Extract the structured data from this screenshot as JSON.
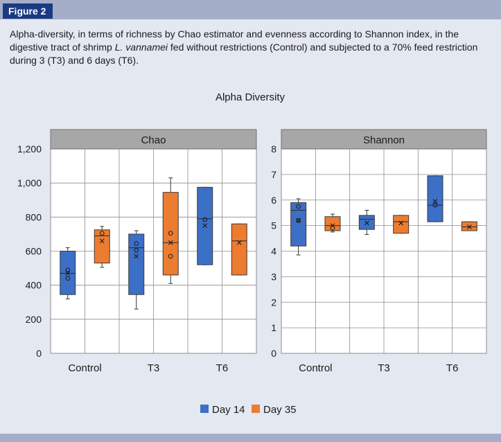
{
  "figure": {
    "label": "Figure 2",
    "caption_parts": [
      "Alpha-diversity, in terms of richness by Chao estimator and evenness according to Shannon index, in the digestive tract of shrimp ",
      "L. vannamei",
      " fed without restrictions (Control) and subjected to a 70% feed restriction during 3 (T3) and 6 days (T6)."
    ]
  },
  "colors": {
    "day14": "#3c6fc6",
    "day35": "#ec7c30",
    "panel_header": "#a7a7a7",
    "plot_bg": "#ffffff",
    "grid": "#8c8c8c"
  },
  "chart_data": {
    "type": "box",
    "title": "Alpha Diversity",
    "categories": [
      "Control",
      "T3",
      "T6"
    ],
    "legend": [
      "Day 14",
      "Day 35"
    ],
    "legend_position": "bottom",
    "panels": [
      {
        "name": "Chao",
        "ylim": [
          0,
          1200
        ],
        "yticks": [
          0,
          200,
          400,
          600,
          800,
          1000,
          1200
        ],
        "ytick_labels": [
          "0",
          "200",
          "400",
          "600",
          "800",
          "1,000",
          "1,200"
        ],
        "series": [
          {
            "name": "Day 14",
            "boxes": [
              {
                "whisker_low": 320,
                "q1": 345,
                "median": 470,
                "q3": 600,
                "whisker_high": 620,
                "mean": 470,
                "points": [
                  440,
                  490
                ]
              },
              {
                "whisker_low": 260,
                "q1": 345,
                "median": 620,
                "q3": 700,
                "whisker_high": 720,
                "mean": 570,
                "points": [
                  605,
                  645
                ]
              },
              {
                "whisker_low": 520,
                "q1": 520,
                "median": 790,
                "q3": 975,
                "whisker_high": 975,
                "mean": 750,
                "points": [
                  785
                ]
              }
            ]
          },
          {
            "name": "Day 35",
            "boxes": [
              {
                "whisker_low": 505,
                "q1": 530,
                "median": 690,
                "q3": 725,
                "whisker_high": 745,
                "mean": 660,
                "points": [
                  705
                ]
              },
              {
                "whisker_low": 410,
                "q1": 460,
                "median": 650,
                "q3": 945,
                "whisker_high": 1030,
                "mean": 650,
                "points": [
                  570,
                  705
                ]
              },
              {
                "whisker_low": 460,
                "q1": 460,
                "median": 660,
                "q3": 760,
                "whisker_high": 760,
                "mean": 650,
                "points": []
              }
            ]
          }
        ]
      },
      {
        "name": "Shannon",
        "ylim": [
          0,
          8
        ],
        "yticks": [
          0,
          1,
          2,
          3,
          4,
          5,
          6,
          7,
          8
        ],
        "ytick_labels": [
          "0",
          "1",
          "2",
          "3",
          "4",
          "5",
          "6",
          "7",
          "8"
        ],
        "series": [
          {
            "name": "Day 14",
            "boxes": [
              {
                "whisker_low": 3.85,
                "q1": 4.2,
                "median": 5.6,
                "q3": 5.9,
                "whisker_high": 6.05,
                "mean": 5.2,
                "points": [
                  5.2,
                  5.75
                ]
              },
              {
                "whisker_low": 4.65,
                "q1": 4.85,
                "median": 5.25,
                "q3": 5.4,
                "whisker_high": 5.6,
                "mean": 5.1,
                "points": []
              },
              {
                "whisker_low": 5.15,
                "q1": 5.15,
                "median": 5.8,
                "q3": 6.95,
                "whisker_high": 6.95,
                "mean": 5.95,
                "points": [
                  5.8
                ]
              }
            ]
          },
          {
            "name": "Day 35",
            "boxes": [
              {
                "whisker_low": 4.75,
                "q1": 4.8,
                "median": 5.0,
                "q3": 5.35,
                "whisker_high": 5.45,
                "mean": 5.0,
                "points": [
                  4.9
                ]
              },
              {
                "whisker_low": 4.7,
                "q1": 4.7,
                "median": 5.15,
                "q3": 5.4,
                "whisker_high": 5.4,
                "mean": 5.1,
                "points": []
              },
              {
                "whisker_low": 4.8,
                "q1": 4.8,
                "median": 4.95,
                "q3": 5.15,
                "whisker_high": 5.15,
                "mean": 4.95,
                "points": []
              }
            ]
          }
        ]
      }
    ]
  }
}
